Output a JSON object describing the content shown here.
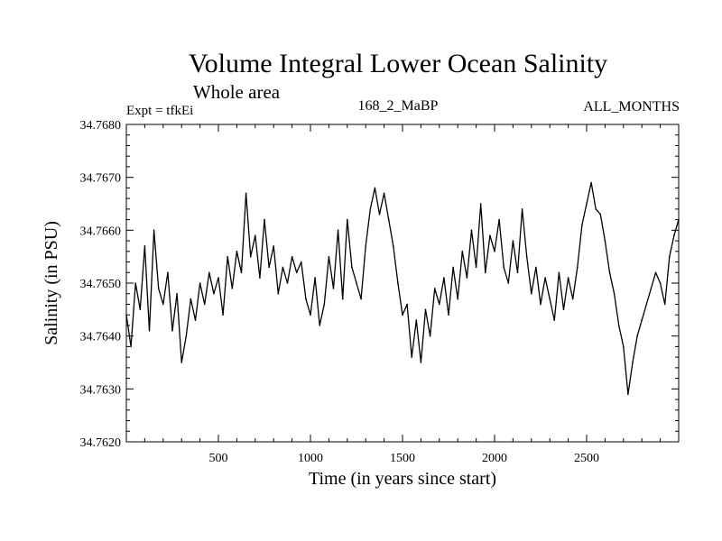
{
  "chart_data": {
    "type": "line",
    "title": "Volume Integral Lower Ocean Salinity",
    "subtitle": "Whole area",
    "experiment": "Expt = tfkEi",
    "run_label": "168_2_MaBP",
    "months_label": "ALL_MONTHS",
    "xlabel": "Time (in years since start)",
    "ylabel": "Salinity (in PSU)",
    "xlim": [
      0,
      3000
    ],
    "ylim": [
      34.762,
      34.768
    ],
    "x_ticks": [
      500,
      1000,
      1500,
      2000,
      2500
    ],
    "y_ticks": [
      "34.7620",
      "34.7630",
      "34.7640",
      "34.7650",
      "34.7660",
      "34.7670",
      "34.7680"
    ],
    "grid": false,
    "series": [
      {
        "color": "#000000",
        "x": [
          0,
          25,
          50,
          75,
          100,
          125,
          150,
          175,
          200,
          225,
          250,
          275,
          300,
          325,
          350,
          375,
          400,
          425,
          450,
          475,
          500,
          525,
          550,
          575,
          600,
          625,
          650,
          675,
          700,
          725,
          750,
          775,
          800,
          825,
          850,
          875,
          900,
          925,
          950,
          975,
          1000,
          1025,
          1050,
          1075,
          1100,
          1125,
          1150,
          1175,
          1200,
          1225,
          1250,
          1275,
          1300,
          1325,
          1350,
          1375,
          1400,
          1425,
          1450,
          1475,
          1500,
          1525,
          1550,
          1575,
          1600,
          1625,
          1650,
          1675,
          1700,
          1725,
          1750,
          1775,
          1800,
          1825,
          1850,
          1875,
          1900,
          1925,
          1950,
          1975,
          2000,
          2025,
          2050,
          2075,
          2100,
          2125,
          2150,
          2175,
          2200,
          2225,
          2250,
          2275,
          2300,
          2325,
          2350,
          2375,
          2400,
          2425,
          2450,
          2475,
          2500,
          2525,
          2550,
          2575,
          2600,
          2625,
          2650,
          2675,
          2700,
          2725,
          2750,
          2775,
          2800,
          2825,
          2850,
          2875,
          2900,
          2925,
          2950,
          2975,
          3000
        ],
        "y": [
          34.7644,
          34.7638,
          34.765,
          34.7645,
          34.7657,
          34.7641,
          34.766,
          34.7649,
          34.7646,
          34.7652,
          34.7641,
          34.7648,
          34.7635,
          34.764,
          34.7647,
          34.7643,
          34.765,
          34.7646,
          34.7652,
          34.7648,
          34.7651,
          34.7644,
          34.7655,
          34.7649,
          34.7656,
          34.7652,
          34.7667,
          34.7655,
          34.7659,
          34.7651,
          34.7662,
          34.7653,
          34.7657,
          34.7648,
          34.7653,
          34.765,
          34.7655,
          34.7652,
          34.7654,
          34.7647,
          34.7644,
          34.7651,
          34.7642,
          34.7646,
          34.7655,
          34.7649,
          34.766,
          34.7647,
          34.7662,
          34.7653,
          34.765,
          34.7647,
          34.7657,
          34.7664,
          34.7668,
          34.7663,
          34.7667,
          34.7662,
          34.7657,
          34.765,
          34.7644,
          34.7646,
          34.7636,
          34.7643,
          34.7635,
          34.7645,
          34.764,
          34.7649,
          34.7646,
          34.7651,
          34.7644,
          34.7653,
          34.7647,
          34.7656,
          34.7651,
          34.766,
          34.7653,
          34.7665,
          34.7652,
          34.7659,
          34.7656,
          34.7662,
          34.7653,
          34.765,
          34.7658,
          34.7652,
          34.7664,
          34.7655,
          34.7648,
          34.7653,
          34.7646,
          34.7651,
          34.7647,
          34.7643,
          34.7652,
          34.7645,
          34.7651,
          34.7647,
          34.7653,
          34.7661,
          34.7665,
          34.7669,
          34.7664,
          34.7663,
          34.7658,
          34.7652,
          34.7648,
          34.7642,
          34.7638,
          34.7629,
          34.7635,
          34.764,
          34.7643,
          34.7646,
          34.7649,
          34.7652,
          34.765,
          34.7646,
          34.7655,
          34.7659,
          34.7662
        ]
      }
    ]
  }
}
